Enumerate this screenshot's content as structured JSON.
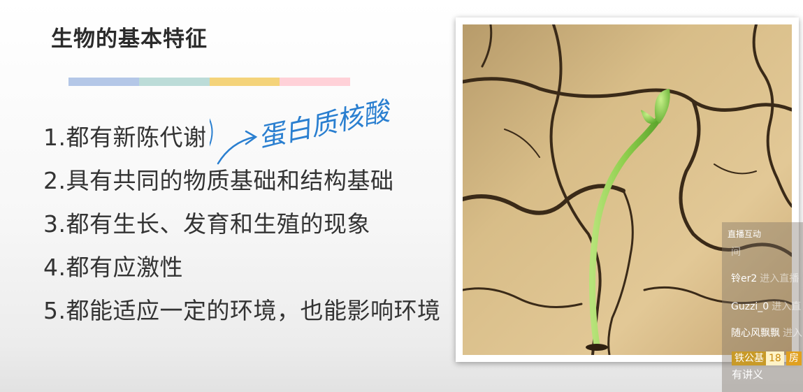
{
  "slide": {
    "title": "生物的基本特征",
    "color_bar": [
      "#b4c7e7",
      "#bcdcd8",
      "#f4d37a",
      "#ffd1d8"
    ],
    "points": [
      "1.都有新陈代谢",
      "2.具有共同的物质基础和结构基础",
      "3.都有生长、发育和生殖的现象",
      "4.都有应激性",
      "5.都能适应一定的环境，也能影响环境"
    ],
    "handwriting": "蛋白质核酸"
  },
  "chat": {
    "header": "直播互动",
    "lines": [
      {
        "user": "间",
        "action": ""
      },
      {
        "user": "铃er2",
        "action": "进入直播"
      },
      {
        "user": "Guzzi_0",
        "action": "进入直"
      },
      {
        "user": "随心风飘飘",
        "action": "进入"
      }
    ],
    "badge": {
      "name": "铁公基",
      "level": "18",
      "room": "房"
    },
    "message": "有讲义"
  },
  "colors": {
    "accent_ink": "#2a7fd0",
    "annotation_red": "#d03030",
    "sprout_green": "#8bd14a",
    "soil": "#d9b985"
  }
}
